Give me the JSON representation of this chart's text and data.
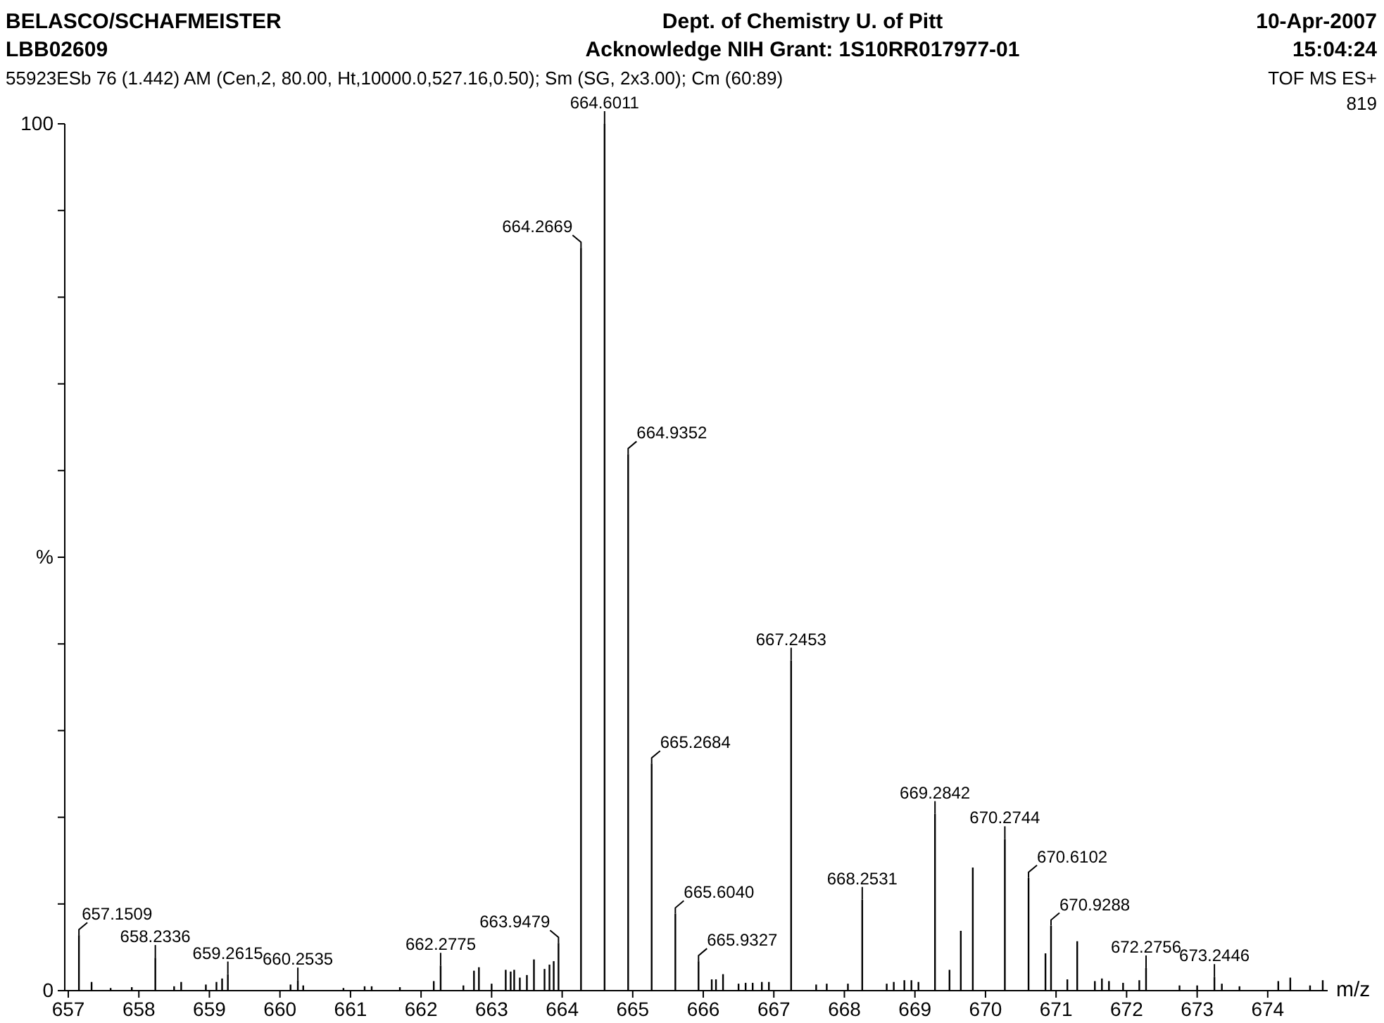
{
  "chart_data": {
    "type": "bar",
    "title": "Dept. of Chemistry U. of Pitt",
    "subtitle": "Acknowledge NIH Grant: 1S10RR017977-01",
    "xlabel": "m/z",
    "x": [
      657.1509,
      657.33,
      657.6,
      657.9,
      658.2336,
      658.5,
      658.6,
      658.95,
      659.1,
      659.18,
      659.2615,
      660.15,
      660.2535,
      660.33,
      660.9,
      661.2,
      661.3,
      661.7,
      662.18,
      662.2775,
      662.6,
      662.75,
      662.82,
      663.0,
      663.2,
      663.27,
      663.32,
      663.4,
      663.5,
      663.6,
      663.75,
      663.82,
      663.88,
      663.9479,
      664.2669,
      664.6011,
      664.9352,
      665.2684,
      665.604,
      665.9327,
      666.12,
      666.18,
      666.28,
      666.5,
      666.6,
      666.7,
      666.83,
      666.93,
      667.2453,
      667.6,
      667.75,
      668.05,
      668.2531,
      668.6,
      668.7,
      668.85,
      668.95,
      669.05,
      669.2842,
      669.49,
      669.65,
      669.82,
      670.2744,
      670.6102,
      670.85,
      670.9288,
      671.16,
      671.3,
      671.55,
      671.65,
      671.75,
      671.95,
      672.18,
      672.2756,
      672.75,
      673.0,
      673.2446,
      673.35,
      673.6,
      674.15,
      674.32,
      674.6,
      674.78
    ],
    "values": [
      6.4,
      1.0,
      0.3,
      0.4,
      3.8,
      0.5,
      1.0,
      0.7,
      1.0,
      1.4,
      1.9,
      0.7,
      1.2,
      0.6,
      0.3,
      0.5,
      0.5,
      0.4,
      1.1,
      2.9,
      0.6,
      2.3,
      2.7,
      0.8,
      2.4,
      2.2,
      2.4,
      1.5,
      1.8,
      3.6,
      2.5,
      3.0,
      3.4,
      5.5,
      85.7,
      100,
      61.9,
      26.2,
      8.9,
      3.4,
      1.3,
      1.3,
      1.9,
      0.8,
      0.9,
      0.9,
      1.0,
      1.0,
      38.1,
      0.7,
      0.8,
      0.8,
      10.5,
      0.8,
      1.0,
      1.2,
      1.2,
      1.0,
      20.4,
      2.4,
      6.9,
      14.2,
      17.5,
      13.0,
      4.3,
      7.5,
      1.3,
      5.7,
      1.1,
      1.4,
      1.1,
      0.9,
      1.2,
      2.6,
      0.6,
      0.6,
      1.6,
      0.8,
      0.5,
      1.1,
      1.5,
      0.6,
      1.2
    ],
    "color": "#000000",
    "xlim": [
      656.95,
      674.85
    ],
    "xticks": [
      657,
      658,
      659,
      660,
      661,
      662,
      663,
      664,
      665,
      666,
      667,
      668,
      669,
      670,
      671,
      672,
      673,
      674
    ],
    "ylim": [
      0,
      100
    ],
    "yticks": [
      0,
      {
        "value": 10,
        "label": null
      },
      {
        "value": 20,
        "label": null
      },
      {
        "value": 30,
        "label": null
      },
      {
        "value": 40,
        "label": null
      },
      {
        "value": 50,
        "label": "%"
      },
      {
        "value": 60,
        "label": null
      },
      {
        "value": 70,
        "label": null
      },
      {
        "value": 80,
        "label": null
      },
      {
        "value": 90,
        "label": null
      },
      100
    ],
    "grid": false,
    "annotations": [
      {
        "text": "657.1509",
        "x": 657.1509,
        "y": 6.4
      },
      {
        "text": "658.2336",
        "x": 658.2336,
        "y": 3.8
      },
      {
        "text": "659.2615",
        "x": 659.2615,
        "y": 1.9
      },
      {
        "text": "660.2535",
        "x": 660.2535,
        "y": 1.2
      },
      {
        "text": "662.2775",
        "x": 662.2775,
        "y": 2.9
      },
      {
        "text": "663.9479",
        "x": 663.9479,
        "y": 5.5
      },
      {
        "text": "664.2669",
        "x": 664.2669,
        "y": 85.7
      },
      {
        "text": "664.6011",
        "x": 664.6011,
        "y": 100
      },
      {
        "text": "664.9352",
        "x": 664.9352,
        "y": 61.9
      },
      {
        "text": "665.2684",
        "x": 665.2684,
        "y": 26.2
      },
      {
        "text": "665.6040",
        "x": 665.604,
        "y": 8.9
      },
      {
        "text": "665.9327",
        "x": 665.9327,
        "y": 3.4
      },
      {
        "text": "667.2453",
        "x": 667.2453,
        "y": 38.1
      },
      {
        "text": "668.2531",
        "x": 668.2531,
        "y": 10.5
      },
      {
        "text": "669.2842",
        "x": 669.2842,
        "y": 20.4
      },
      {
        "text": "670.2744",
        "x": 670.2744,
        "y": 17.5
      },
      {
        "text": "670.6102",
        "x": 670.6102,
        "y": 13.0
      },
      {
        "text": "670.9288",
        "x": 670.9288,
        "y": 7.5
      },
      {
        "text": "672.2756",
        "x": 672.2756,
        "y": 2.6
      },
      {
        "text": "673.2446",
        "x": 673.2446,
        "y": 1.6
      },
      "BELASCO/SCHAFMEISTER",
      "LBB02609",
      "55923ESb 76 (1.442) AM (Cen,2, 80.00, Ht,10000.0,527.16,0.50); Sm (SG, 2x3.00); Cm (60:89)",
      "10-Apr-2007",
      "15:04:24",
      "TOF MS ES+",
      "819"
    ]
  }
}
